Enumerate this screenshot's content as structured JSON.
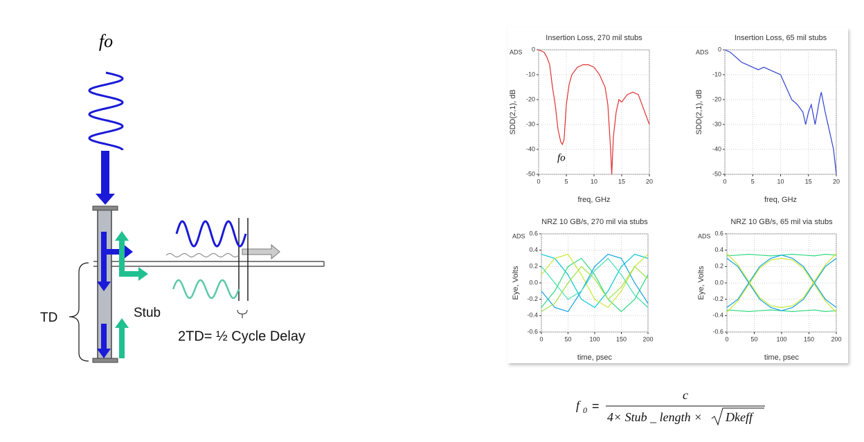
{
  "diagram": {
    "top_label": "fo",
    "td_label": "TD",
    "stub_label": "Stub",
    "delay_label": "2TD= ½ Cycle Delay"
  },
  "chart_data": [
    {
      "type": "line",
      "title": "Insertion Loss, 270 mil stubs",
      "x_label": "freq, GHz",
      "y_label": "SDD(2,1), dB",
      "corner_label": "ADS",
      "annotation": "fo",
      "x": [
        0,
        1,
        1.5,
        2,
        2.5,
        3,
        3.5,
        4,
        4.3,
        4.6,
        5,
        5.5,
        6,
        7,
        8,
        9,
        10,
        11,
        12,
        12.5,
        13,
        13.2,
        13.5,
        14,
        14.5,
        15,
        16,
        17,
        18,
        19,
        20
      ],
      "series": [
        {
          "color": "#e03030",
          "values": [
            0,
            -1,
            -3,
            -6,
            -15,
            -22,
            -32,
            -37,
            -38,
            -36,
            -22,
            -14,
            -10,
            -7,
            -6,
            -6,
            -7,
            -10,
            -15,
            -22,
            -40,
            -50,
            -35,
            -25,
            -20,
            -21,
            -18,
            -17,
            -18,
            -24,
            -30
          ]
        }
      ],
      "xlim": [
        0,
        20
      ],
      "ylim": [
        -50,
        0
      ],
      "xticks": [
        0,
        5,
        10,
        15,
        20
      ],
      "yticks": [
        0,
        -10,
        -20,
        -30,
        -40,
        -50
      ],
      "grid": true,
      "x_label_color": "#e03030"
    },
    {
      "type": "line",
      "title": "Insertion Loss, 65 mil stubs",
      "x_label": "freq, GHz",
      "y_label": "SDD(2,1), dB",
      "corner_label": "ADS",
      "x": [
        0,
        1,
        2,
        3,
        4,
        5,
        6,
        7,
        8,
        9,
        10,
        11,
        12,
        13,
        14,
        14.5,
        15,
        15.5,
        16.2,
        17,
        17.3,
        18,
        19,
        19.5,
        20
      ],
      "series": [
        {
          "color": "#3040d0",
          "values": [
            0,
            -1,
            -3,
            -5,
            -6,
            -7,
            -8,
            -7,
            -8,
            -9,
            -10,
            -15,
            -20,
            -22,
            -25,
            -30,
            -25,
            -22,
            -30,
            -20,
            -17,
            -25,
            -35,
            -40,
            -50
          ]
        }
      ],
      "xlim": [
        0,
        20
      ],
      "ylim": [
        -50,
        0
      ],
      "xticks": [
        0,
        5,
        10,
        15,
        20
      ],
      "yticks": [
        0,
        -10,
        -20,
        -30,
        -40,
        -50
      ],
      "grid": true,
      "x_label_color": "#3040d0"
    },
    {
      "type": "line",
      "title": "NRZ 10 GB/s, 270 mil via stubs",
      "x_label": "time, psec",
      "y_label": "Eye, Volts",
      "corner_label": "ADS",
      "x": [
        0,
        25,
        50,
        75,
        100,
        125,
        150,
        175,
        200
      ],
      "series": [
        {
          "color": "#00c8d8",
          "values": [
            0.35,
            0.3,
            0.1,
            -0.2,
            -0.3,
            -0.1,
            0.2,
            0.35,
            0.3
          ]
        },
        {
          "color": "#30d880",
          "values": [
            -0.3,
            -0.1,
            0.2,
            0.3,
            0.1,
            -0.2,
            -0.35,
            -0.2,
            0.1
          ]
        },
        {
          "color": "#c8e830",
          "values": [
            0.1,
            0.3,
            0.35,
            0.1,
            -0.2,
            -0.3,
            -0.1,
            0.2,
            0.35
          ]
        },
        {
          "color": "#10a0e0",
          "values": [
            -0.1,
            -0.3,
            -0.35,
            -0.1,
            0.2,
            0.35,
            0.3,
            0,
            -0.25
          ]
        },
        {
          "color": "#40e0b0",
          "values": [
            0.2,
            0,
            -0.2,
            -0.1,
            0.15,
            0.3,
            0.1,
            -0.15,
            -0.3
          ]
        },
        {
          "color": "#a0e040",
          "values": [
            -0.35,
            -0.25,
            0,
            0.2,
            0.05,
            -0.2,
            -0.05,
            0.2,
            0.05
          ]
        }
      ],
      "xlim": [
        0,
        200
      ],
      "ylim": [
        -0.6,
        0.6
      ],
      "xticks": [
        0,
        50,
        100,
        150,
        200
      ],
      "yticks": [
        0.6,
        0.4,
        0.2,
        {
          "value": 0,
          "label": "0.0"
        },
        -0.2,
        -0.4,
        -0.6
      ],
      "grid": true
    },
    {
      "type": "line",
      "title": "NRZ 10 GB/s, 65 mil via stubs",
      "x_label": "time, psec",
      "y_label": "Eye, Volts",
      "corner_label": "ADS",
      "x": [
        0,
        20,
        40,
        60,
        80,
        100,
        120,
        140,
        160,
        180,
        200
      ],
      "series": [
        {
          "color": "#30d880",
          "values": [
            0.33,
            0.34,
            0.35,
            0.34,
            0.33,
            0.34,
            0.35,
            0.34,
            0.33,
            0.35,
            0.34
          ]
        },
        {
          "color": "#30d880",
          "values": [
            -0.33,
            -0.34,
            -0.35,
            -0.34,
            -0.33,
            -0.34,
            -0.35,
            -0.34,
            -0.33,
            -0.35,
            -0.34
          ]
        },
        {
          "color": "#10a0e0",
          "values": [
            0.3,
            0.2,
            0,
            -0.2,
            -0.3,
            -0.34,
            -0.3,
            -0.2,
            0,
            0.2,
            0.3
          ]
        },
        {
          "color": "#10a0e0",
          "values": [
            -0.3,
            -0.2,
            0,
            0.2,
            0.3,
            0.34,
            0.3,
            0.2,
            0,
            -0.2,
            -0.3
          ]
        },
        {
          "color": "#c8e830",
          "values": [
            0.36,
            0.22,
            0.02,
            -0.18,
            -0.28,
            -0.3,
            -0.28,
            -0.18,
            0.02,
            0.22,
            0.36
          ]
        },
        {
          "color": "#c8e830",
          "values": [
            -0.36,
            -0.22,
            -0.02,
            0.18,
            0.28,
            0.3,
            0.28,
            0.18,
            -0.02,
            -0.22,
            -0.36
          ]
        }
      ],
      "xlim": [
        0,
        200
      ],
      "ylim": [
        -0.6,
        0.6
      ],
      "xticks": [
        0,
        50,
        100,
        150,
        200
      ],
      "yticks": [
        0.6,
        0.4,
        0.2,
        {
          "value": 0,
          "label": "0.0"
        },
        -0.2,
        -0.4,
        -0.6
      ],
      "grid": true
    }
  ],
  "formula": {
    "lhs": "f",
    "lhs_sub": "0",
    "equals": "=",
    "numerator": "c",
    "denominator": "4× Stub _ length ×",
    "radicand": "Dkeff"
  }
}
